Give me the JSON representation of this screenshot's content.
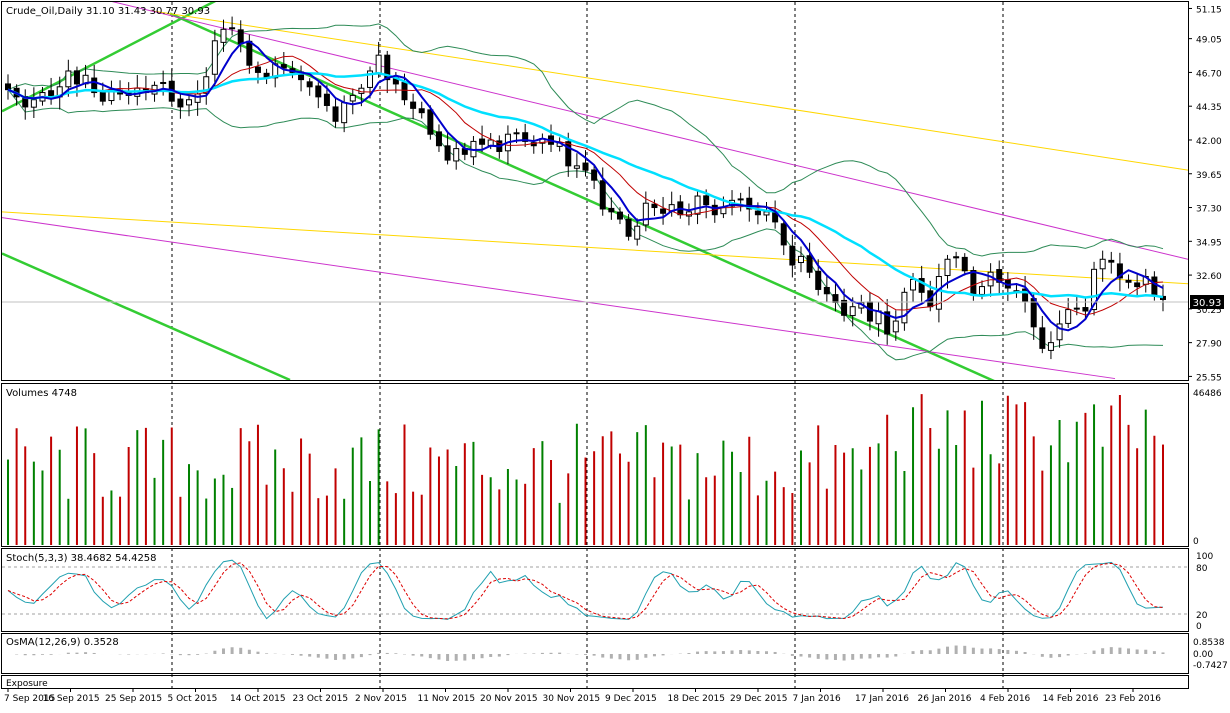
{
  "chart_data": {
    "type": "candlestick",
    "symbol_header": "Crude_Oil,Daily  31.10 31.43 30.77 30.93",
    "price_axis": {
      "range": [
        25.3,
        51.6
      ],
      "ticks": [
        "51.15",
        "49.05",
        "46.70",
        "44.35",
        "42.00",
        "39.65",
        "37.30",
        "34.95",
        "32.60",
        "30.25",
        "27.90",
        "25.55"
      ],
      "last_price": "30.93"
    },
    "date_labels": [
      "7 Sep 2015",
      "16 Sep 2015",
      "25 Sep 2015",
      "5 Oct 2015",
      "14 Oct 2015",
      "23 Oct 2015",
      "2 Nov 2015",
      "11 Nov 2015",
      "20 Nov 2015",
      "30 Nov 2015",
      "9 Dec 2015",
      "18 Dec 2015",
      "29 Dec 2015",
      "7 Jan 2016",
      "17 Jan 2016",
      "26 Jan 2016",
      "4 Feb 2016",
      "14 Feb 2016",
      "23 Feb 2016"
    ],
    "closes": [
      45.5,
      45.0,
      44.3,
      44.8,
      45.3,
      44.9,
      45.7,
      46.8,
      45.9,
      46.5,
      45.3,
      44.7,
      45.5,
      45.2,
      45.1,
      45.6,
      45.3,
      45.8,
      46.0,
      44.7,
      44.3,
      44.8,
      45.2,
      46.4,
      48.9,
      49.7,
      49.8,
      48.7,
      47.2,
      46.7,
      46.3,
      47.3,
      47.0,
      46.7,
      46.2,
      45.7,
      45.0,
      44.4,
      43.3,
      44.6,
      45.1,
      45.6,
      46.8,
      47.9,
      46.2,
      45.9,
      44.8,
      44.2,
      43.9,
      42.4,
      41.6,
      40.6,
      41.4,
      41.0,
      41.9,
      41.7,
      42.0,
      41.2,
      42.4,
      42.5,
      41.9,
      41.6,
      42.1,
      41.7,
      41.8,
      40.2,
      40.2,
      39.9,
      39.2,
      37.2,
      37.0,
      36.5,
      35.3,
      36.0,
      37.6,
      37.3,
      36.9,
      37.5,
      36.8,
      37.0,
      38.1,
      37.5,
      36.8,
      37.3,
      37.8,
      37.9,
      37.2,
      36.8,
      37.0,
      36.3,
      34.7,
      33.3,
      33.9,
      32.8,
      31.6,
      31.3,
      30.7,
      29.8,
      30.4,
      30.7,
      29.4,
      30.1,
      28.5,
      29.4,
      31.4,
      32.3,
      31.4,
      30.4,
      32.5,
      33.7,
      33.8,
      32.9,
      31.2,
      31.8,
      32.8,
      32.1,
      31.7,
      31.5,
      30.8,
      29.0,
      27.5,
      27.9,
      29.2,
      30.2,
      30.3,
      30.1,
      33.0,
      33.7,
      33.5,
      32.4,
      32.1,
      31.8,
      32.5,
      31.2,
      30.9
    ],
    "price_labels_note": "",
    "volume": {
      "label": "Volumes 4748",
      "max_label": "46486",
      "min_label": "0"
    },
    "stochastic": {
      "label": "Stoch(5,3,3) 38.4682 54.4258",
      "ticks": [
        "100",
        "80",
        "20",
        "0"
      ]
    },
    "osma": {
      "label": "OsMA(12,26,9) 0.3528",
      "ticks": [
        "0.8538",
        "0.00",
        "-0.7427"
      ]
    },
    "exposure": {
      "label": "Exposure"
    },
    "colors": {
      "bull_volume": "#008000",
      "bear_volume": "#c00000",
      "ma_fast": "#0000cc",
      "ma_slow": "#00e0ff",
      "ma_red": "#c00000",
      "band": "#2e8b57",
      "channel_green": "#33cc33",
      "channel_magenta": "#cc33cc",
      "channel_yellow": "#ffd700",
      "stoch_main": "#20a0b0",
      "stoch_signal": "#dd0000"
    }
  }
}
